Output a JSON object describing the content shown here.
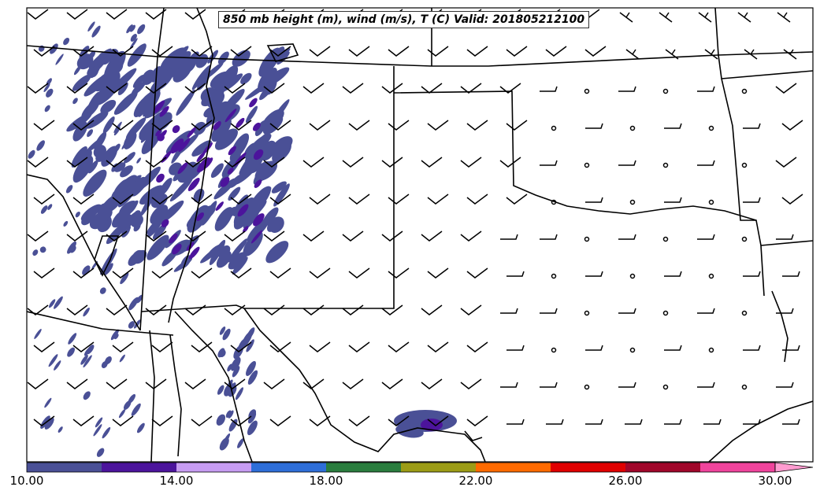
{
  "map": {
    "title": "850 mb height (m), wind (m/s), T (C) Valid: 201805212100",
    "region": "Texas and Southern Plains",
    "colorbar": {
      "labels": [
        "10.00",
        "14.00",
        "18.00",
        "22.00",
        "26.00",
        "30.00"
      ],
      "colors": [
        "#4a5096",
        "#4c149c",
        "#c79cf2",
        "#2e6ed8",
        "#2a7d3e",
        "#9c9c16",
        "#ff6a00",
        "#e00000",
        "#a0062a",
        "#f0449c",
        "#ff9cd0"
      ],
      "extend": "max"
    },
    "layers": {
      "contour_fill_main": "#4a5096",
      "contour_fill_secondary": "#4c149c",
      "state_border": "#000000",
      "coastline": "#000000"
    }
  }
}
